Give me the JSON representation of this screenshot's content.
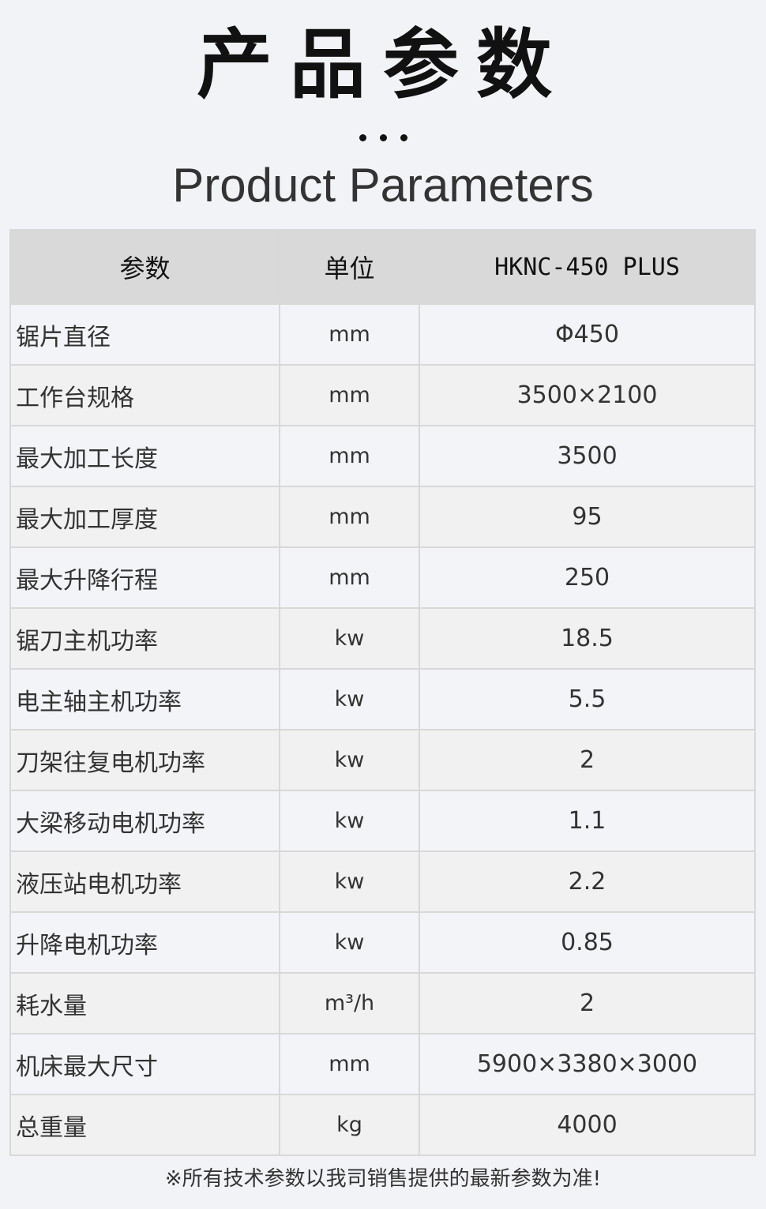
{
  "header": {
    "title_cn": "产品参数",
    "title_en": "Product Parameters"
  },
  "table": {
    "columns": [
      "参数",
      "单位",
      "HKNC-450 PLUS"
    ],
    "rows": [
      {
        "param": "锯片直径",
        "unit": "mm",
        "value": "Φ450"
      },
      {
        "param": "工作台规格",
        "unit": "mm",
        "value": "3500×2100"
      },
      {
        "param": "最大加工长度",
        "unit": "mm",
        "value": "3500"
      },
      {
        "param": "最大加工厚度",
        "unit": "mm",
        "value": "95"
      },
      {
        "param": "最大升降行程",
        "unit": "mm",
        "value": "250"
      },
      {
        "param": "锯刀主机功率",
        "unit": "kw",
        "value": "18.5"
      },
      {
        "param": "电主轴主机功率",
        "unit": "kw",
        "value": "5.5"
      },
      {
        "param": "刀架往复电机功率",
        "unit": "kw",
        "value": "2"
      },
      {
        "param": "大梁移动电机功率",
        "unit": "kw",
        "value": "1.1"
      },
      {
        "param": "液压站电机功率",
        "unit": "kw",
        "value": "2.2"
      },
      {
        "param": "升降电机功率",
        "unit": "kw",
        "value": "0.85"
      },
      {
        "param": "耗水量",
        "unit": "m³/h",
        "value": "2"
      },
      {
        "param": "机床最大尺寸",
        "unit": "mm",
        "value": "5900×3380×3000"
      },
      {
        "param": "总重量",
        "unit": "kg",
        "value": "4000"
      }
    ]
  },
  "footer": {
    "note": "※所有技术参数以我司销售提供的最新参数为准!"
  }
}
